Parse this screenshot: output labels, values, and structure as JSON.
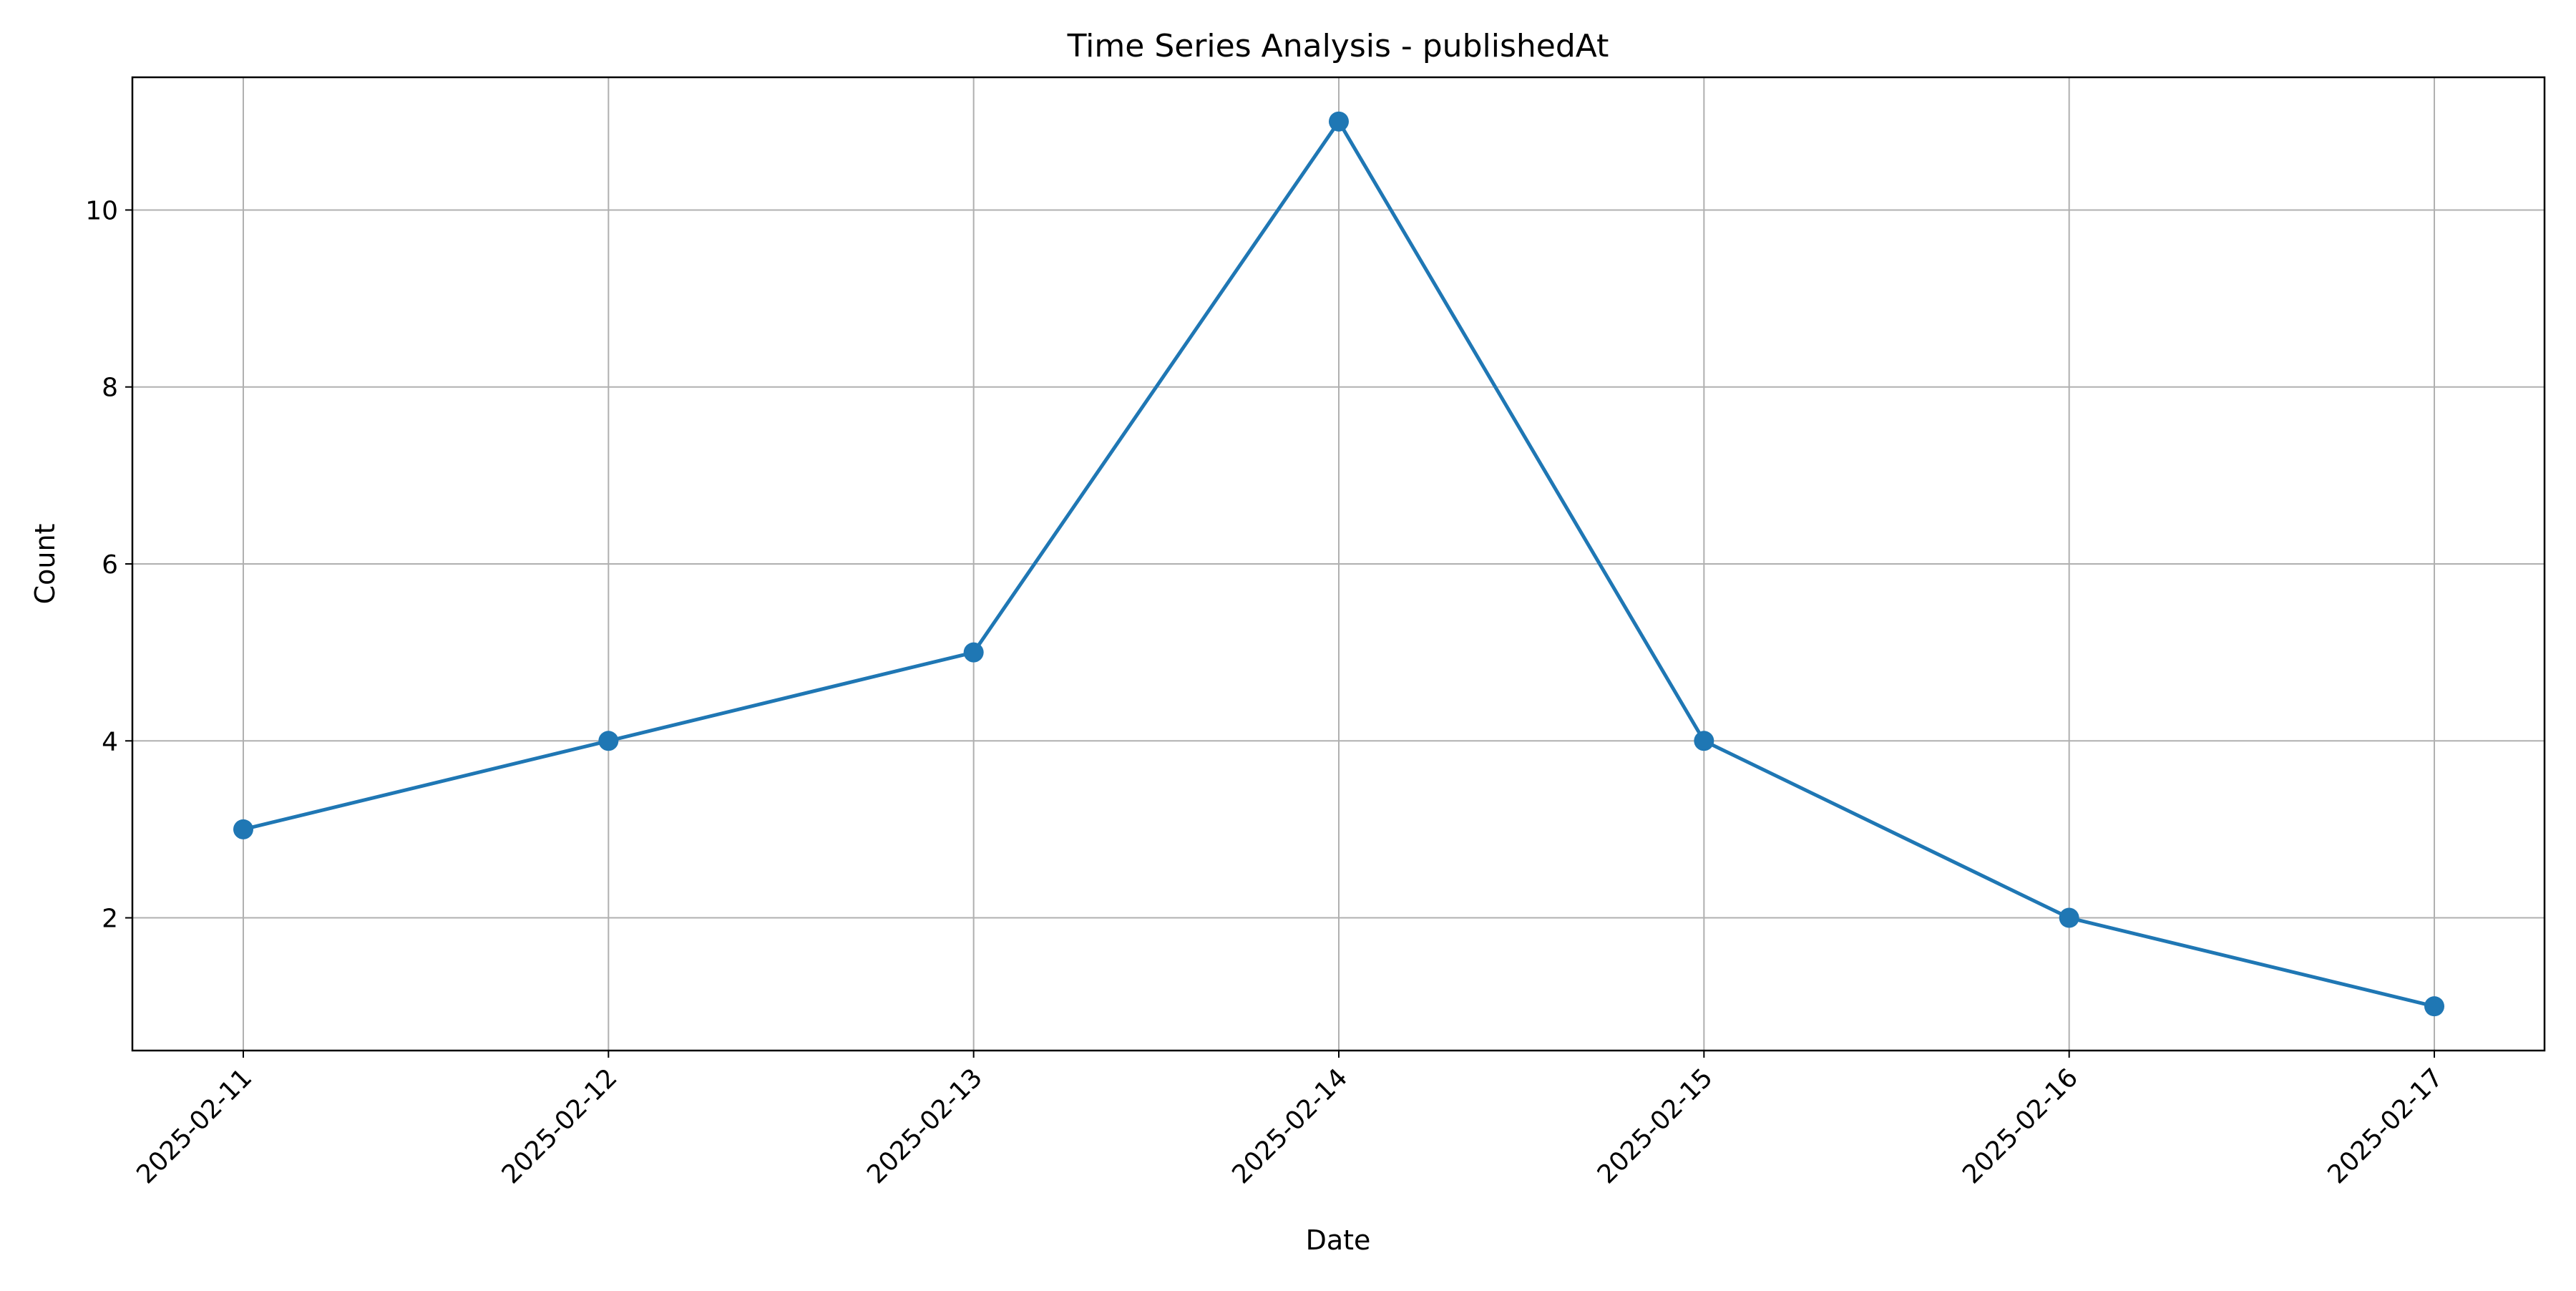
{
  "chart_data": {
    "type": "line",
    "title": "Time Series Analysis - publishedAt",
    "xlabel": "Date",
    "ylabel": "Count",
    "x": [
      "2025-02-11",
      "2025-02-12",
      "2025-02-13",
      "2025-02-14",
      "2025-02-15",
      "2025-02-16",
      "2025-02-17"
    ],
    "series": [
      {
        "values": [
          3,
          4,
          5,
          11,
          4,
          2,
          1
        ]
      }
    ],
    "ylim": [
      0.5,
      11.5
    ],
    "yticks": [
      2,
      4,
      6,
      8,
      10
    ],
    "grid": true,
    "line_color": "#1f77b4",
    "marker": "circle"
  }
}
